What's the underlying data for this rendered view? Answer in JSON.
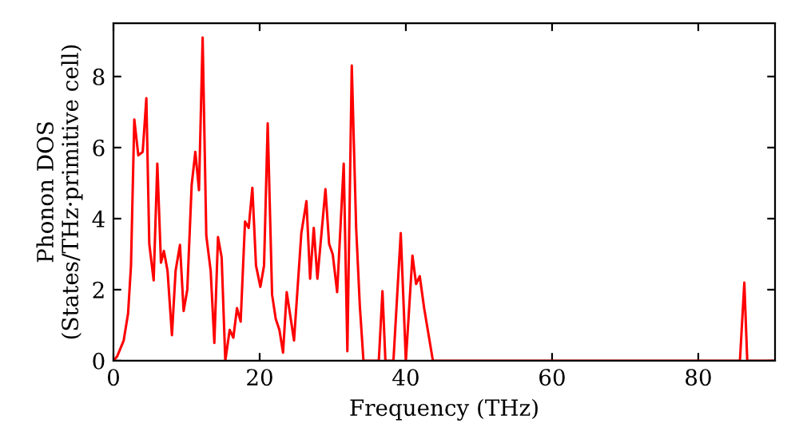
{
  "chart_data": {
    "type": "line",
    "xlabel": "Frequency (THz)",
    "ylabel": "Phonon DOS\n(States/THz·primitive cell)",
    "xlim": [
      0,
      90.5
    ],
    "ylim": [
      0,
      9.5
    ],
    "xticks": [
      0,
      20,
      40,
      60,
      80
    ],
    "yticks": [
      0,
      2,
      4,
      6,
      8
    ],
    "grid": false,
    "legend": false,
    "marker": "none",
    "line_style": "solid",
    "series": [
      {
        "color": "#ff0000",
        "x": [
          0,
          0.5,
          1.4,
          2.0,
          2.4,
          2.85,
          3.4,
          4.0,
          4.5,
          4.9,
          5.5,
          6.0,
          6.5,
          6.9,
          7.4,
          8.0,
          8.5,
          9.1,
          9.6,
          10.1,
          10.7,
          11.2,
          11.7,
          12.2,
          12.7,
          13.3,
          13.8,
          14.3,
          14.8,
          15.3,
          15.9,
          16.4,
          16.9,
          17.4,
          18.0,
          18.5,
          19.0,
          19.5,
          20.1,
          20.6,
          21.1,
          21.7,
          22.2,
          22.7,
          23.2,
          23.7,
          24.7,
          25.7,
          26.4,
          26.9,
          27.4,
          27.9,
          29.0,
          29.5,
          30.0,
          30.6,
          31.5,
          32.0,
          32.6,
          33.2,
          33.7,
          34.2,
          36.3,
          36.8,
          37.2,
          38.3,
          39.3,
          40.0,
          40.9,
          41.4,
          41.9,
          42.5,
          43.7,
          85.7,
          86.3,
          86.7,
          90.5
        ],
        "values": [
          0,
          0.12,
          0.57,
          1.33,
          2.68,
          6.79,
          5.78,
          5.88,
          7.39,
          3.29,
          2.26,
          5.55,
          2.76,
          3.09,
          2.53,
          0.72,
          2.53,
          3.26,
          1.4,
          2.0,
          4.95,
          5.88,
          4.8,
          9.1,
          3.52,
          2.53,
          0.5,
          3.48,
          2.91,
          0,
          0.87,
          0.65,
          1.48,
          1.1,
          3.92,
          3.74,
          4.87,
          2.68,
          2.08,
          2.68,
          6.68,
          1.86,
          1.18,
          0.87,
          0.23,
          1.93,
          0.57,
          3.59,
          4.49,
          2.31,
          3.74,
          2.31,
          4.83,
          3.29,
          2.99,
          1.93,
          5.55,
          0.27,
          8.31,
          3.74,
          1.55,
          0,
          0,
          1.96,
          0,
          0,
          3.59,
          0,
          2.96,
          2.16,
          2.38,
          1.48,
          0,
          0,
          2.2,
          0,
          0
        ]
      }
    ]
  }
}
